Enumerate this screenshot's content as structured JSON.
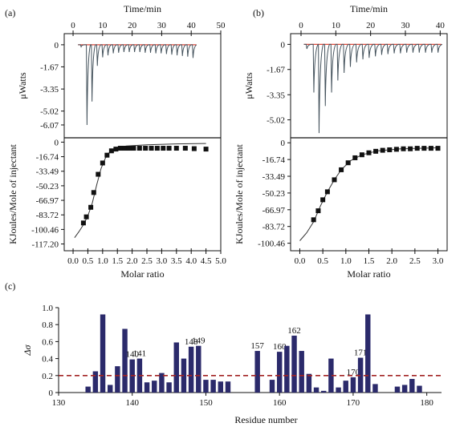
{
  "chart_data": [
    {
      "id": "a",
      "panel_label": "(a)",
      "type": "line",
      "top": {
        "xlabel": "Time/min",
        "xticks": [
          0,
          10,
          20,
          30,
          40,
          50
        ],
        "xlim": [
          -3,
          50
        ],
        "ylabel": "μWatts",
        "yticks": [
          "0",
          "-1.67",
          "-3.35",
          "-5.02",
          "-6.07"
        ],
        "ytick_values": [
          0,
          -1.67,
          -3.35,
          -5.02,
          -6.07
        ],
        "ylim": [
          -6.8,
          0.6
        ],
        "baseline_color": "#e04a3c",
        "trace_color": "#44525c",
        "injections": [
          {
            "t": 2.5,
            "depth": -0.15
          },
          {
            "t": 4.5,
            "depth": -6.07
          },
          {
            "t": 6.2,
            "depth": -4.3
          },
          {
            "t": 8.0,
            "depth": -1.6
          },
          {
            "t": 9.8,
            "depth": -0.95
          },
          {
            "t": 11.6,
            "depth": -0.8
          },
          {
            "t": 13.4,
            "depth": -0.65
          },
          {
            "t": 15.2,
            "depth": -0.6
          },
          {
            "t": 17.0,
            "depth": -0.55
          },
          {
            "t": 18.8,
            "depth": -0.55
          },
          {
            "t": 20.6,
            "depth": -0.55
          },
          {
            "t": 22.4,
            "depth": -0.55
          },
          {
            "t": 24.2,
            "depth": -0.6
          },
          {
            "t": 26.0,
            "depth": -0.6
          },
          {
            "t": 27.8,
            "depth": -0.65
          },
          {
            "t": 29.6,
            "depth": -0.65
          },
          {
            "t": 31.4,
            "depth": -0.7
          },
          {
            "t": 33.2,
            "depth": -0.75
          },
          {
            "t": 35.0,
            "depth": -0.8
          },
          {
            "t": 36.8,
            "depth": -0.85
          },
          {
            "t": 38.6,
            "depth": -0.9
          },
          {
            "t": 40.4,
            "depth": -1.0
          }
        ]
      },
      "bottom": {
        "xlabel": "Molar ratio",
        "xticks": [
          0.0,
          0.5,
          1.0,
          1.5,
          2.0,
          2.5,
          3.0,
          3.5,
          4.0,
          4.5,
          5.0
        ],
        "xlim": [
          -0.3,
          5.0
        ],
        "ylabel": "KJoules/Mole of injectant",
        "yticks": [
          "0",
          "-16.74",
          "-33.49",
          "-50.23",
          "-66.97",
          "-83.72",
          "-100.46",
          "-117.20"
        ],
        "ytick_values": [
          0,
          -16.74,
          -33.49,
          -50.23,
          -66.97,
          -83.72,
          -100.46,
          -117.2
        ],
        "ylim": [
          -125,
          5
        ],
        "points": [
          {
            "x": 0.35,
            "y": -93
          },
          {
            "x": 0.45,
            "y": -86
          },
          {
            "x": 0.6,
            "y": -75
          },
          {
            "x": 0.7,
            "y": -58
          },
          {
            "x": 0.85,
            "y": -37
          },
          {
            "x": 1.0,
            "y": -24
          },
          {
            "x": 1.15,
            "y": -15
          },
          {
            "x": 1.3,
            "y": -10
          },
          {
            "x": 1.45,
            "y": -8
          },
          {
            "x": 1.6,
            "y": -7
          },
          {
            "x": 1.75,
            "y": -7
          },
          {
            "x": 1.9,
            "y": -7
          },
          {
            "x": 2.05,
            "y": -7
          },
          {
            "x": 2.25,
            "y": -7
          },
          {
            "x": 2.45,
            "y": -7
          },
          {
            "x": 2.65,
            "y": -7
          },
          {
            "x": 2.85,
            "y": -7
          },
          {
            "x": 3.05,
            "y": -7
          },
          {
            "x": 3.25,
            "y": -7
          },
          {
            "x": 3.5,
            "y": -7
          },
          {
            "x": 3.8,
            "y": -7
          },
          {
            "x": 4.1,
            "y": -7.5
          },
          {
            "x": 4.5,
            "y": -8
          }
        ],
        "fit": [
          {
            "x": 0.05,
            "y": -110
          },
          {
            "x": 0.2,
            "y": -103
          },
          {
            "x": 0.35,
            "y": -95
          },
          {
            "x": 0.5,
            "y": -85
          },
          {
            "x": 0.65,
            "y": -70
          },
          {
            "x": 0.8,
            "y": -49
          },
          {
            "x": 0.95,
            "y": -30
          },
          {
            "x": 1.1,
            "y": -18
          },
          {
            "x": 1.25,
            "y": -11
          },
          {
            "x": 1.45,
            "y": -7
          },
          {
            "x": 1.8,
            "y": -4.5
          },
          {
            "x": 2.5,
            "y": -3
          },
          {
            "x": 3.5,
            "y": -2
          },
          {
            "x": 4.5,
            "y": -1.5
          }
        ]
      }
    },
    {
      "id": "b",
      "panel_label": "(b)",
      "type": "line",
      "top": {
        "xlabel": "Time/min",
        "xticks": [
          0,
          10,
          20,
          30,
          40
        ],
        "xlim": [
          -3,
          42
        ],
        "ylabel": "μWatts",
        "yticks": [
          "0",
          "-1.67",
          "-3.35",
          "-5.02"
        ],
        "ytick_values": [
          0,
          -1.67,
          -3.35,
          -5.02
        ],
        "ylim": [
          -6.0,
          0.5
        ],
        "baseline_color": "#e04a3c",
        "trace_color": "#44525c",
        "injections": [
          {
            "t": 1.5,
            "depth": -0.3
          },
          {
            "t": 3.5,
            "depth": -3.2
          },
          {
            "t": 5.0,
            "depth": -5.9
          },
          {
            "t": 6.8,
            "depth": -4.1
          },
          {
            "t": 8.6,
            "depth": -3.2
          },
          {
            "t": 10.4,
            "depth": -2.4
          },
          {
            "t": 12.2,
            "depth": -1.9
          },
          {
            "t": 14.0,
            "depth": -1.5
          },
          {
            "t": 15.8,
            "depth": -1.2
          },
          {
            "t": 17.6,
            "depth": -1.0
          },
          {
            "t": 19.4,
            "depth": -0.9
          },
          {
            "t": 21.2,
            "depth": -0.8
          },
          {
            "t": 23.0,
            "depth": -0.7
          },
          {
            "t": 24.8,
            "depth": -0.65
          },
          {
            "t": 26.6,
            "depth": -0.6
          },
          {
            "t": 28.4,
            "depth": -0.6
          },
          {
            "t": 30.2,
            "depth": -0.55
          },
          {
            "t": 32.0,
            "depth": -0.55
          },
          {
            "t": 33.8,
            "depth": -0.55
          },
          {
            "t": 35.6,
            "depth": -0.55
          },
          {
            "t": 37.4,
            "depth": -0.55
          },
          {
            "t": 39.2,
            "depth": -0.55
          }
        ]
      },
      "bottom": {
        "xlabel": "Molar ratio",
        "xticks": [
          0.0,
          0.5,
          1.0,
          1.5,
          2.0,
          2.5,
          3.0
        ],
        "xlim": [
          -0.2,
          3.2
        ],
        "ylabel": "KJoules/Mole of injectant",
        "yticks": [
          "0",
          "-16.74",
          "-33.49",
          "-50.23",
          "-66.97",
          "-83.72",
          "-100.46"
        ],
        "ytick_values": [
          0,
          -16.74,
          -33.49,
          -50.23,
          -66.97,
          -83.72,
          -100.46
        ],
        "ylim": [
          -108,
          5
        ],
        "points": [
          {
            "x": 0.3,
            "y": -77
          },
          {
            "x": 0.4,
            "y": -68
          },
          {
            "x": 0.5,
            "y": -57
          },
          {
            "x": 0.6,
            "y": -49
          },
          {
            "x": 0.75,
            "y": -37
          },
          {
            "x": 0.9,
            "y": -27
          },
          {
            "x": 1.05,
            "y": -20
          },
          {
            "x": 1.2,
            "y": -15
          },
          {
            "x": 1.35,
            "y": -12
          },
          {
            "x": 1.5,
            "y": -10
          },
          {
            "x": 1.65,
            "y": -8.5
          },
          {
            "x": 1.8,
            "y": -7.5
          },
          {
            "x": 1.95,
            "y": -7
          },
          {
            "x": 2.1,
            "y": -6.5
          },
          {
            "x": 2.25,
            "y": -6
          },
          {
            "x": 2.4,
            "y": -6
          },
          {
            "x": 2.55,
            "y": -5.5
          },
          {
            "x": 2.7,
            "y": -5.5
          },
          {
            "x": 2.85,
            "y": -5.5
          },
          {
            "x": 3.0,
            "y": -5.5
          }
        ],
        "fit": [
          {
            "x": 0.0,
            "y": -98
          },
          {
            "x": 0.15,
            "y": -90
          },
          {
            "x": 0.3,
            "y": -79
          },
          {
            "x": 0.45,
            "y": -63
          },
          {
            "x": 0.6,
            "y": -49
          },
          {
            "x": 0.75,
            "y": -37
          },
          {
            "x": 0.9,
            "y": -27
          },
          {
            "x": 1.1,
            "y": -18
          },
          {
            "x": 1.35,
            "y": -12
          },
          {
            "x": 1.7,
            "y": -8
          },
          {
            "x": 2.2,
            "y": -6
          },
          {
            "x": 3.0,
            "y": -5
          }
        ]
      }
    },
    {
      "id": "c",
      "panel_label": "(c)",
      "type": "bar",
      "xlabel": "Residue number",
      "ylabel": "Δσ",
      "xlim": [
        130,
        182
      ],
      "ylim": [
        0,
        1.0
      ],
      "xticks": [
        130,
        140,
        150,
        160,
        170,
        180
      ],
      "yticks": [
        0,
        0.2,
        0.4,
        0.6,
        0.8,
        1.0
      ],
      "yticklabels": [
        "0",
        "0.2",
        "0.4",
        "0.6",
        "0.8",
        "1.0"
      ],
      "bar_color": "#2b2a6b",
      "threshold": 0.2,
      "threshold_color": "#a32424",
      "bars": [
        {
          "x": 134,
          "y": 0.07
        },
        {
          "x": 135,
          "y": 0.25
        },
        {
          "x": 136,
          "y": 0.92
        },
        {
          "x": 137,
          "y": 0.09
        },
        {
          "x": 138,
          "y": 0.31
        },
        {
          "x": 139,
          "y": 0.75
        },
        {
          "x": 140,
          "y": 0.39,
          "label": "140"
        },
        {
          "x": 141,
          "y": 0.4,
          "label": "141"
        },
        {
          "x": 142,
          "y": 0.12
        },
        {
          "x": 143,
          "y": 0.14
        },
        {
          "x": 144,
          "y": 0.23
        },
        {
          "x": 145,
          "y": 0.12
        },
        {
          "x": 146,
          "y": 0.59
        },
        {
          "x": 147,
          "y": 0.4
        },
        {
          "x": 148,
          "y": 0.54,
          "label": "148"
        },
        {
          "x": 149,
          "y": 0.55,
          "label": "149"
        },
        {
          "x": 150,
          "y": 0.15
        },
        {
          "x": 151,
          "y": 0.15
        },
        {
          "x": 152,
          "y": 0.13
        },
        {
          "x": 153,
          "y": 0.13
        },
        {
          "x": 157,
          "y": 0.49,
          "label": "157"
        },
        {
          "x": 159,
          "y": 0.15
        },
        {
          "x": 160,
          "y": 0.48,
          "label": "160"
        },
        {
          "x": 161,
          "y": 0.55
        },
        {
          "x": 162,
          "y": 0.67,
          "label": "162"
        },
        {
          "x": 163,
          "y": 0.49
        },
        {
          "x": 164,
          "y": 0.22
        },
        {
          "x": 165,
          "y": 0.06
        },
        {
          "x": 166,
          "y": 0.02
        },
        {
          "x": 167,
          "y": 0.4
        },
        {
          "x": 168,
          "y": 0.06
        },
        {
          "x": 169,
          "y": 0.14
        },
        {
          "x": 170,
          "y": 0.18,
          "label": "170"
        },
        {
          "x": 171,
          "y": 0.41,
          "label": "171"
        },
        {
          "x": 172,
          "y": 0.92
        },
        {
          "x": 173,
          "y": 0.1
        },
        {
          "x": 176,
          "y": 0.07
        },
        {
          "x": 177,
          "y": 0.09
        },
        {
          "x": 178,
          "y": 0.16
        },
        {
          "x": 179,
          "y": 0.08
        }
      ]
    }
  ]
}
